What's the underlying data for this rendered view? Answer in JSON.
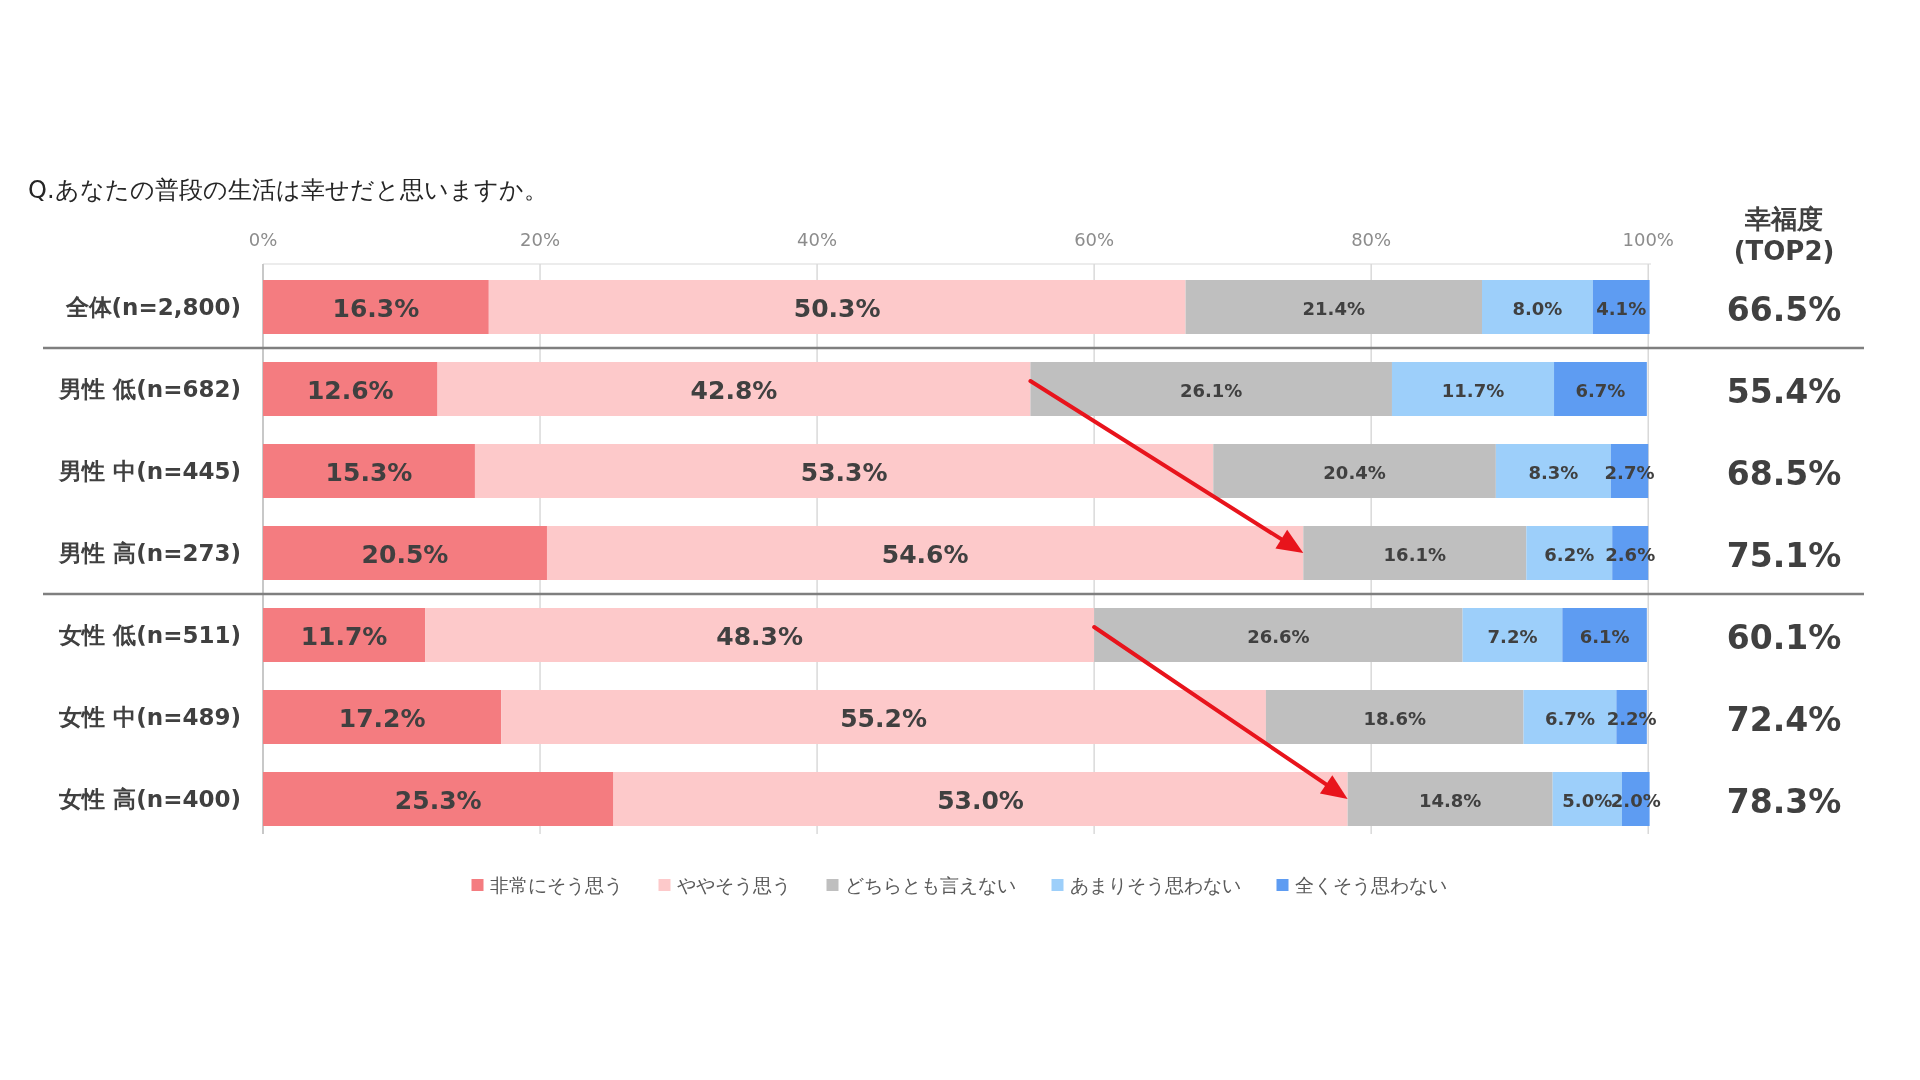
{
  "chart_data": {
    "type": "bar",
    "orientation": "horizontal",
    "stacked": true,
    "title": "Q.あなたの普段の生活は幸せだと思いますか。",
    "categories": [
      "全体(n=2,800)",
      "男性 低(n=682)",
      "男性 中(n=445)",
      "男性 高(n=273)",
      "女性 低(n=511)",
      "女性 中(n=489)",
      "女性 高(n=400)"
    ],
    "xlim": [
      0,
      100.2
    ],
    "xticks": [
      {
        "value": 0,
        "label": "0%"
      },
      {
        "value": 20,
        "label": "20%"
      },
      {
        "value": 40,
        "label": "40%"
      },
      {
        "value": 60,
        "label": "60%"
      },
      {
        "value": 80,
        "label": "80%"
      },
      {
        "value": 100,
        "label": "100%"
      }
    ],
    "grid": "x",
    "legend": "bottom",
    "series": [
      {
        "name": "非常にそう思う",
        "color": "#f47c80",
        "values": [
          16.3,
          12.6,
          15.3,
          20.5,
          11.7,
          17.2,
          25.3
        ],
        "value_labels": [
          "16.3%",
          "12.6%",
          "15.3%",
          "20.5%",
          "11.7%",
          "17.2%",
          "25.3%"
        ]
      },
      {
        "name": "ややそう思う",
        "color": "#fdc9ca",
        "values": [
          50.3,
          42.8,
          53.3,
          54.6,
          48.3,
          55.2,
          53.0
        ],
        "value_labels": [
          "50.3%",
          "42.8%",
          "53.3%",
          "54.6%",
          "48.3%",
          "55.2%",
          "53.0%"
        ]
      },
      {
        "name": "どちらとも言えない",
        "color": "#bfbfbf",
        "values": [
          21.4,
          26.1,
          20.4,
          16.1,
          26.6,
          18.6,
          14.8
        ],
        "value_labels": [
          "21.4%",
          "26.1%",
          "20.4%",
          "16.1%",
          "26.6%",
          "18.6%",
          "14.8%"
        ]
      },
      {
        "name": "あまりそう思わない",
        "color": "#9dcffa",
        "values": [
          8.0,
          11.7,
          8.3,
          6.2,
          7.2,
          6.7,
          5.0
        ],
        "value_labels": [
          "8.0%",
          "11.7%",
          "8.3%",
          "6.2%",
          "7.2%",
          "6.7%",
          "5.0%"
        ]
      },
      {
        "name": "全くそう思わない",
        "color": "#5e9cf2",
        "values": [
          4.1,
          6.7,
          2.7,
          2.6,
          6.1,
          2.2,
          2.0
        ],
        "value_labels": [
          "4.1%",
          "6.7%",
          "2.7%",
          "2.6%",
          "6.1%",
          "2.2%",
          "2.0%"
        ]
      }
    ],
    "annotations": [
      "幸福度\n(TOP2)",
      "66.5%",
      "55.4%",
      "68.5%",
      "75.1%",
      "60.1%",
      "72.4%",
      "78.3%"
    ]
  }
}
